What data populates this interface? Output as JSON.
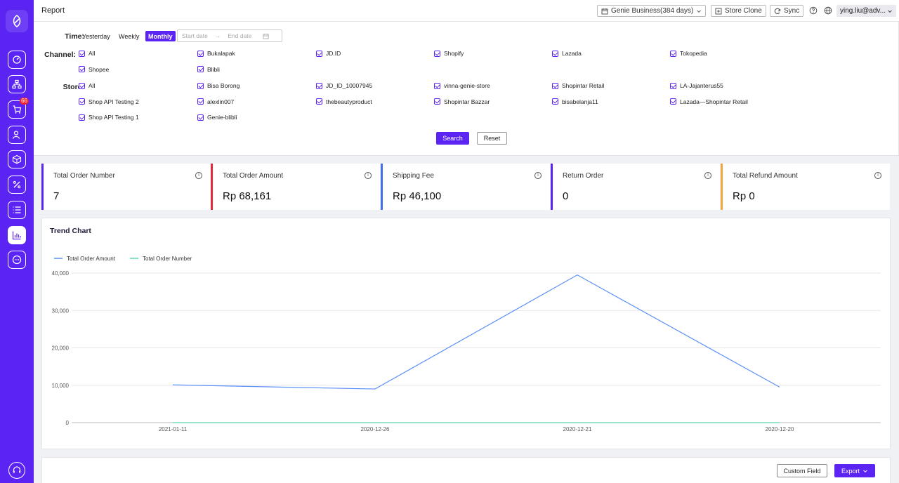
{
  "header": {
    "page_title": "Report",
    "business_label": "Genie Business(384 days)",
    "store_clone_label": "Store Clone",
    "sync_label": "Sync",
    "user_label": "ying.liu@adv..."
  },
  "sidebar": {
    "cart_badge": "66"
  },
  "filters": {
    "time_label": "Time:",
    "time_options": [
      "Yesterday",
      "Weekly",
      "Monthly"
    ],
    "active_time": "Monthly",
    "start_placeholder": "Start date",
    "end_placeholder": "End date",
    "channel_label": "Channel:",
    "channels": [
      "All",
      "Bukalapak",
      "JD.ID",
      "Shopify",
      "Lazada",
      "Tokopedia",
      "Shopee",
      "Blibli"
    ],
    "store_label": "Store:",
    "stores": [
      "All",
      "Bisa Borong",
      "JD_ID_10007945",
      "vinna-genie-store",
      "Shopintar Retail",
      "LA-Jajanterus55",
      "Shop API Testing 2",
      "alexlin007",
      "thebeautyproduct",
      "Shopintar Bazzar",
      "bisabelanja11",
      "Lazada—Shopintar Retail",
      "Shop API Testing 1",
      "Genie-blibli"
    ],
    "search_label": "Search",
    "reset_label": "Reset"
  },
  "metrics": [
    {
      "title": "Total Order Number",
      "value": "7",
      "color": "#5b24f2"
    },
    {
      "title": "Total Order Amount",
      "value": "Rp 68,161",
      "color": "#e5283a"
    },
    {
      "title": "Shipping Fee",
      "value": "Rp 46,100",
      "color": "#4470f0"
    },
    {
      "title": "Return Order",
      "value": "0",
      "color": "#5b24f2"
    },
    {
      "title": "Total Refund Amount",
      "value": "Rp 0",
      "color": "#f3a640"
    }
  ],
  "chart_data": {
    "type": "line",
    "title": "Trend Chart",
    "categories": [
      "2021-01-11",
      "2020-12-26",
      "2020-12-21",
      "2020-12-20"
    ],
    "series": [
      {
        "name": "Total Order Amount",
        "values": [
          10100,
          9000,
          39500,
          9500
        ],
        "color": "#5b8ff9"
      },
      {
        "name": "Total Order Number",
        "values": [
          2,
          1,
          2,
          2
        ],
        "color": "#5ad8a6"
      }
    ],
    "yticks": [
      0,
      10000,
      20000,
      30000,
      40000
    ],
    "ytick_labels": [
      "0",
      "10,000",
      "20,000",
      "30,000",
      "40,000"
    ],
    "ylim": [
      0,
      40000
    ],
    "legend": "top-left",
    "grid": true
  },
  "actions": {
    "custom_field_label": "Custom Field",
    "export_label": "Export"
  }
}
